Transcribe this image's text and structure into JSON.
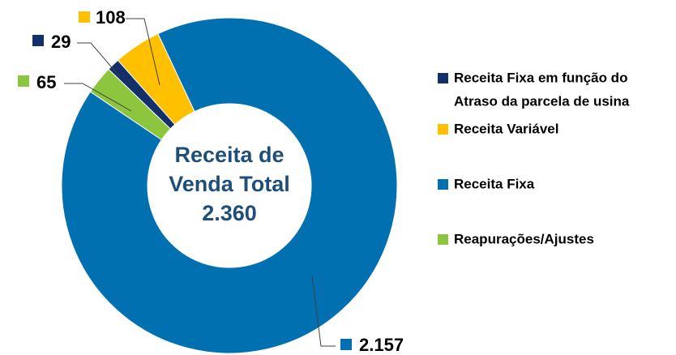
{
  "chart_data": {
    "type": "donut",
    "center_label": [
      "Receita de",
      "Venda Total",
      "2.360"
    ],
    "categories": [
      "Receita Fixa em função do Atraso da parcela de usina",
      "Receita Variável",
      "Receita Fixa",
      "Reapurações/Ajustes"
    ],
    "legend_lines": [
      [
        "Receita Fixa em função do",
        "Atraso da parcela de usina"
      ],
      [
        "Receita Variável"
      ],
      [
        "Receita Fixa"
      ],
      [
        "Reapurações/Ajustes"
      ]
    ],
    "values": [
      29,
      108,
      2157,
      65
    ],
    "value_labels": [
      "29",
      "108",
      "2.157",
      "65"
    ],
    "colors": [
      "#13306b",
      "#ffc000",
      "#0070b0",
      "#8cc63f"
    ],
    "legend": "right"
  }
}
